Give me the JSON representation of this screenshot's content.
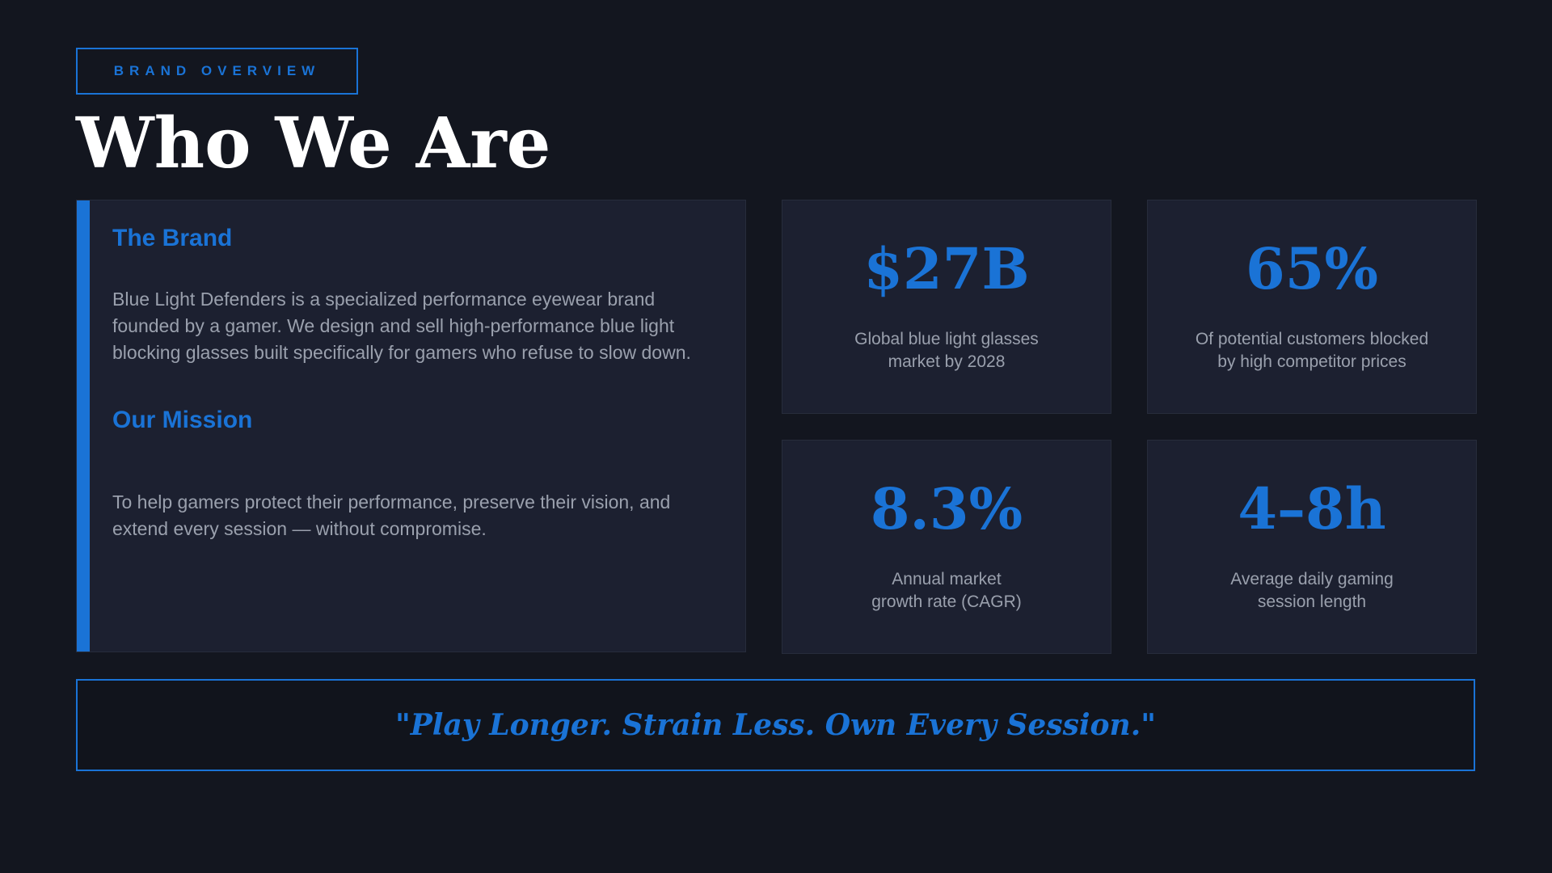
{
  "header": {
    "tag": "BRAND OVERVIEW",
    "title": "Who We Are"
  },
  "brand": {
    "heading": "The Brand",
    "text": "Blue Light Defenders is a specialized performance eyewear brand founded by a gamer. We design and sell high-performance blue light blocking glasses built specifically for gamers who refuse to slow down."
  },
  "mission": {
    "heading": "Our Mission",
    "text": "To help gamers protect their performance, preserve their vision, and extend every session — without compromise."
  },
  "stats": [
    {
      "value": "$27B",
      "label": [
        "Global blue light glasses",
        "market by 2028"
      ]
    },
    {
      "value": "65%",
      "label": [
        "Of potential customers blocked",
        "by high competitor prices"
      ]
    },
    {
      "value": "8.3%",
      "label": [
        "Annual market",
        "growth rate (CAGR)"
      ]
    },
    {
      "value": "4–8h",
      "label": [
        "Average daily gaming",
        "session length"
      ]
    }
  ],
  "quote": "\"Play Longer. Strain Less. Own Every Session.\""
}
